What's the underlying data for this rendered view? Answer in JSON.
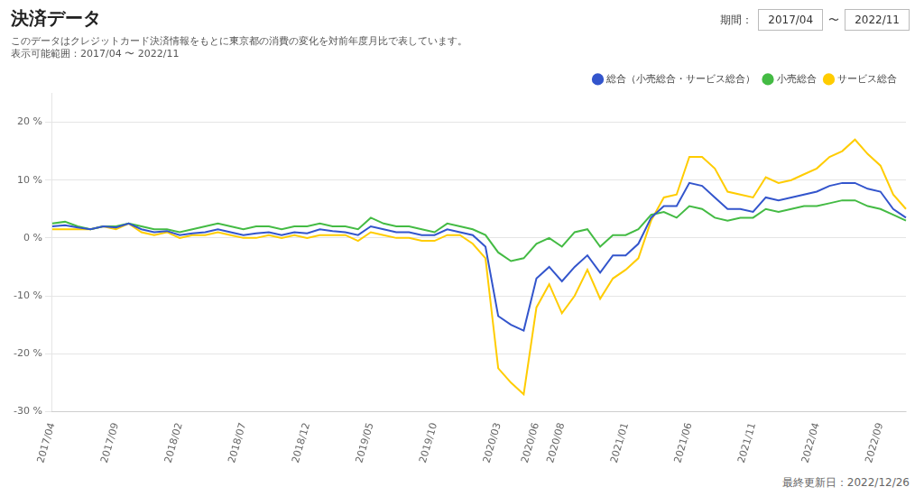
{
  "chart_data": {
    "type": "line",
    "title": "決済データ",
    "subtitle": [
      "このデータはクレジットカード決済情報をもとに東京都の消費の変化を対前年度月比で表しています。",
      "表示可能範囲：2017/04 〜 2022/11"
    ],
    "annotations": [
      "期間：",
      "2017/04",
      "〜",
      "2022/11",
      "最終更新日：2022/12/26"
    ],
    "categories": [
      "2017/04",
      null,
      null,
      null,
      null,
      "2017/09",
      null,
      null,
      null,
      null,
      "2018/02",
      null,
      null,
      null,
      null,
      "2018/07",
      null,
      null,
      null,
      null,
      "2018/12",
      null,
      null,
      null,
      null,
      "2019/05",
      null,
      null,
      null,
      null,
      "2019/10",
      null,
      null,
      null,
      null,
      "2020/03",
      null,
      null,
      "2020/06",
      null,
      "2020/08",
      null,
      null,
      null,
      null,
      "2021/01",
      null,
      null,
      null,
      null,
      "2021/06",
      null,
      null,
      null,
      null,
      "2021/11",
      null,
      null,
      null,
      null,
      "2022/04",
      null,
      null,
      null,
      null,
      "2022/09",
      null,
      null
    ],
    "series": [
      {
        "name": "総合（小売総合・サービス総合）",
        "color": "#3355cc",
        "values": [
          2.0,
          2.2,
          1.8,
          1.5,
          2.0,
          1.8,
          2.5,
          1.5,
          1.0,
          1.2,
          0.5,
          0.8,
          1.0,
          1.5,
          1.0,
          0.5,
          0.8,
          1.0,
          0.5,
          1.0,
          0.8,
          1.5,
          1.2,
          1.0,
          0.5,
          2.0,
          1.5,
          1.0,
          1.0,
          0.5,
          0.5,
          1.5,
          1.0,
          0.5,
          -1.5,
          -13.5,
          -15.0,
          -16.0,
          -7.0,
          -5.0,
          -7.5,
          -5.0,
          -3.0,
          -6.0,
          -3.0,
          -3.0,
          -1.0,
          3.5,
          5.5,
          5.5,
          9.5,
          9.0,
          7.0,
          5.0,
          5.0,
          4.5,
          7.0,
          6.5,
          7.0,
          7.5,
          8.0,
          9.0,
          9.5,
          9.5,
          8.5,
          8.0,
          5.0,
          3.5
        ]
      },
      {
        "name": "小売総合",
        "color": "#44bb44",
        "values": [
          2.5,
          2.8,
          2.0,
          1.5,
          2.0,
          2.0,
          2.5,
          2.0,
          1.5,
          1.5,
          1.0,
          1.5,
          2.0,
          2.5,
          2.0,
          1.5,
          2.0,
          2.0,
          1.5,
          2.0,
          2.0,
          2.5,
          2.0,
          2.0,
          1.5,
          3.5,
          2.5,
          2.0,
          2.0,
          1.5,
          1.0,
          2.5,
          2.0,
          1.5,
          0.5,
          -2.5,
          -4.0,
          -3.5,
          -1.0,
          0.0,
          -1.5,
          1.0,
          1.5,
          -1.5,
          0.5,
          0.5,
          1.5,
          4.0,
          4.5,
          3.5,
          5.5,
          5.0,
          3.5,
          3.0,
          3.5,
          3.5,
          5.0,
          4.5,
          5.0,
          5.5,
          5.5,
          6.0,
          6.5,
          6.5,
          5.5,
          5.0,
          4.0,
          3.0
        ]
      },
      {
        "name": "サービス総合",
        "color": "#ffcc00",
        "values": [
          1.5,
          1.5,
          1.5,
          1.5,
          2.0,
          1.5,
          2.5,
          1.0,
          0.5,
          1.0,
          0.0,
          0.5,
          0.5,
          1.0,
          0.5,
          0.0,
          0.0,
          0.5,
          0.0,
          0.5,
          0.0,
          0.5,
          0.5,
          0.5,
          -0.5,
          1.0,
          0.5,
          0.0,
          0.0,
          -0.5,
          -0.5,
          0.5,
          0.5,
          -1.0,
          -3.5,
          -22.5,
          -25.0,
          -27.0,
          -12.0,
          -8.0,
          -13.0,
          -10.0,
          -5.5,
          -10.5,
          -7.0,
          -5.5,
          -3.5,
          3.0,
          7.0,
          7.5,
          14.0,
          14.0,
          12.0,
          8.0,
          7.5,
          7.0,
          10.5,
          9.5,
          10.0,
          11.0,
          12.0,
          14.0,
          15.0,
          17.0,
          14.5,
          12.5,
          7.5,
          5.0
        ]
      }
    ],
    "ylim": [
      -30,
      25
    ],
    "yticks": [
      {
        "value": -30,
        "label": "-30 %"
      },
      {
        "value": -20,
        "label": "-20 %"
      },
      {
        "value": -10,
        "label": "-10 %"
      },
      {
        "value": 0,
        "label": "0 %"
      },
      {
        "value": 10,
        "label": "10 %"
      },
      {
        "value": 20,
        "label": "20 %"
      }
    ],
    "grid": true,
    "legend": "upper right"
  }
}
